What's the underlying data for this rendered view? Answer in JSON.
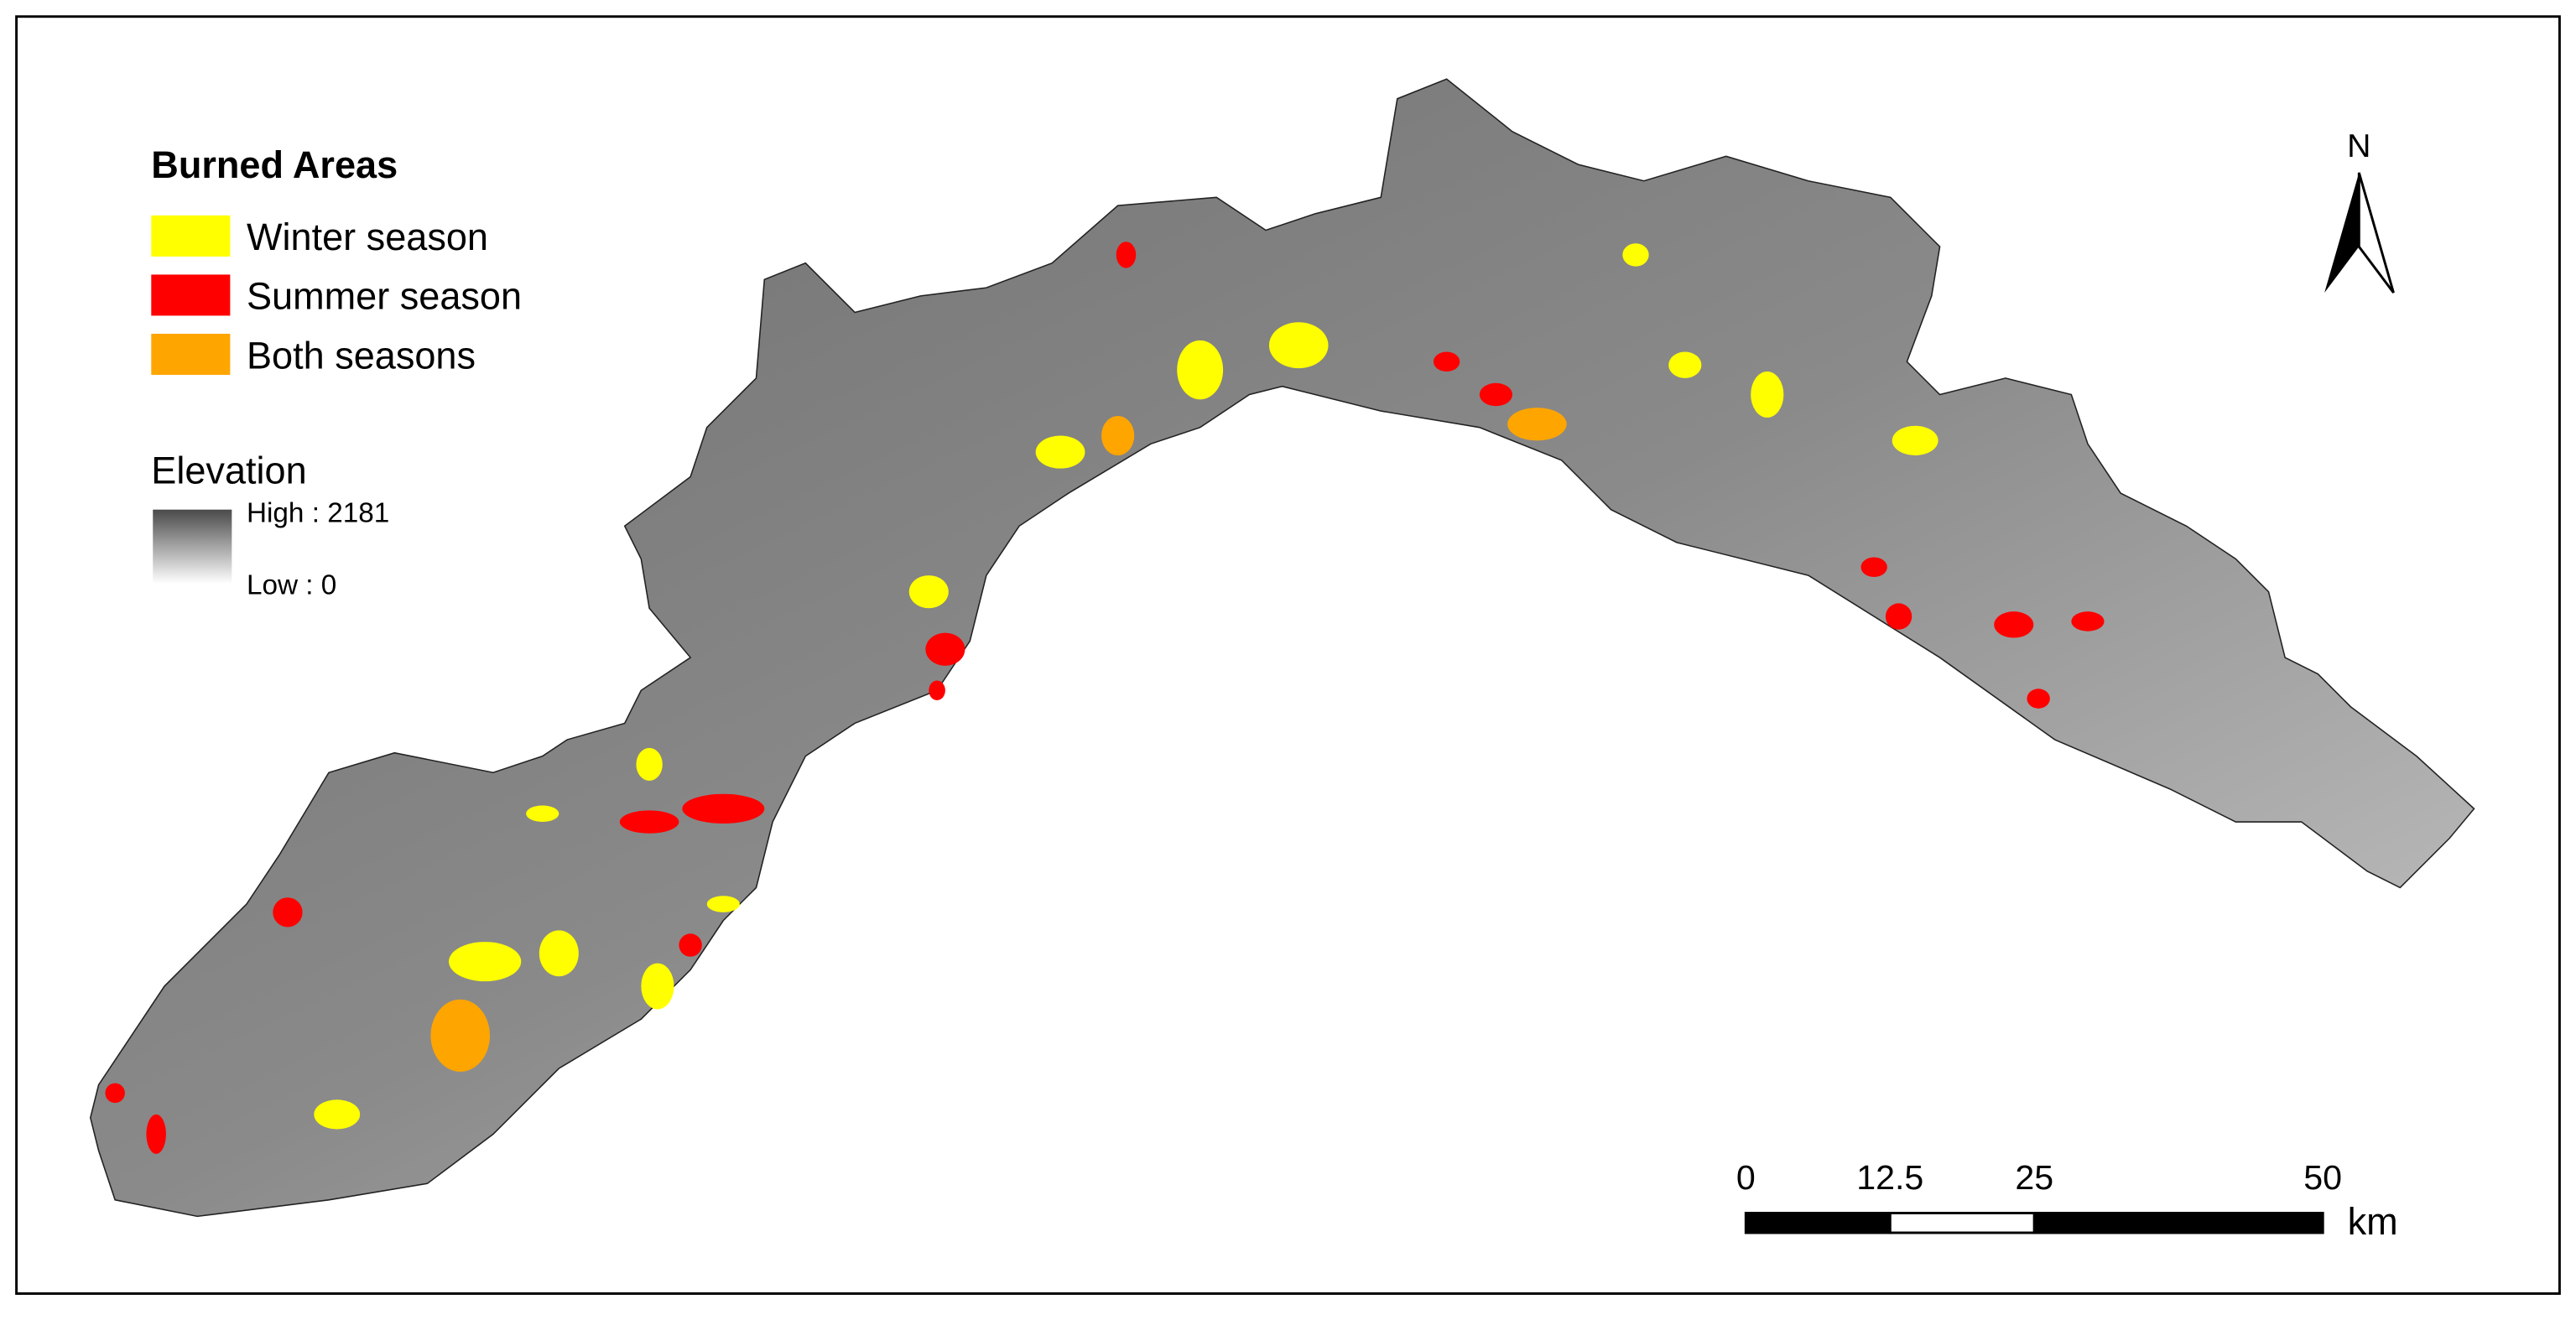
{
  "legend": {
    "title": "Burned Areas",
    "items": [
      {
        "label": "Winter season",
        "color": "#ffff00"
      },
      {
        "label": "Summer season",
        "color": "#ff0000"
      },
      {
        "label": "Both seasons",
        "color": "#ffa500"
      }
    ]
  },
  "elevation": {
    "title": "Elevation",
    "high": "High : 2181",
    "low": "Low : 0"
  },
  "north_arrow": {
    "label": "N"
  },
  "scale_bar": {
    "ticks": [
      0,
      12.5,
      25,
      50
    ],
    "unit": "km"
  }
}
